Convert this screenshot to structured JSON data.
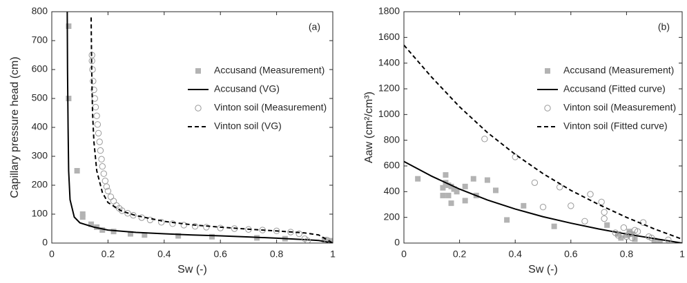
{
  "chart_data": [
    {
      "type": "scatter",
      "annotation": "(a)",
      "x_label": "Sw (-)",
      "y_label": "Capillary pressure head (cm)",
      "xlim": [
        0,
        1
      ],
      "xticks": [
        0,
        0.2,
        0.4,
        0.6,
        0.8,
        1
      ],
      "ylim": [
        0,
        800
      ],
      "yticks": [
        0,
        100,
        200,
        300,
        400,
        500,
        600,
        700,
        800
      ],
      "legend_loc": "right",
      "series": [
        {
          "name": "Accusand (Measurement)",
          "color": "#b3b3b3",
          "marker": "square",
          "x": [
            0.06,
            0.06,
            0.09,
            0.11,
            0.11,
            0.14,
            0.16,
            0.18,
            0.22,
            0.28,
            0.33,
            0.45,
            0.57,
            0.73,
            0.83,
            0.97,
            0.99,
            1.0
          ],
          "values": [
            750,
            500,
            250,
            100,
            90,
            65,
            55,
            45,
            40,
            32,
            28,
            25,
            22,
            18,
            15,
            12,
            8,
            3
          ]
        },
        {
          "name": "Accusand (VG)",
          "color": "#000000",
          "line": "solid",
          "x": [
            0.055,
            0.056,
            0.058,
            0.06,
            0.065,
            0.08,
            0.1,
            0.15,
            0.2,
            0.3,
            0.4,
            0.5,
            0.6,
            0.7,
            0.8,
            0.9,
            0.95,
            1.0
          ],
          "values": [
            800,
            600,
            400,
            250,
            150,
            90,
            70,
            55,
            45,
            37,
            32,
            28,
            25,
            21,
            17,
            12,
            9,
            0
          ]
        },
        {
          "name": "Vinton soil (Measurement)",
          "color": "#999999",
          "marker": "circle",
          "x": [
            0.143,
            0.143,
            0.145,
            0.147,
            0.15,
            0.153,
            0.156,
            0.16,
            0.163,
            0.166,
            0.17,
            0.173,
            0.177,
            0.18,
            0.185,
            0.19,
            0.195,
            0.2,
            0.21,
            0.22,
            0.23,
            0.24,
            0.25,
            0.27,
            0.29,
            0.32,
            0.35,
            0.39,
            0.43,
            0.47,
            0.51,
            0.55,
            0.6,
            0.65,
            0.7,
            0.75,
            0.8,
            0.85,
            0.88,
            0.9,
            0.91,
            0.98
          ],
          "values": [
            650,
            630,
            600,
            560,
            530,
            500,
            470,
            440,
            410,
            380,
            350,
            320,
            290,
            265,
            240,
            215,
            195,
            180,
            160,
            145,
            130,
            120,
            112,
            103,
            96,
            88,
            80,
            72,
            67,
            62,
            58,
            55,
            52,
            50,
            47,
            45,
            42,
            38,
            32,
            15,
            8,
            10
          ]
        },
        {
          "name": "Vinton soil (VG)",
          "color": "#000000",
          "line": "dashed",
          "x": [
            0.14,
            0.142,
            0.145,
            0.15,
            0.16,
            0.18,
            0.2,
            0.25,
            0.3,
            0.4,
            0.5,
            0.6,
            0.7,
            0.8,
            0.9,
            0.95,
            1.0
          ],
          "values": [
            780,
            600,
            450,
            350,
            250,
            175,
            140,
            110,
            95,
            75,
            63,
            55,
            48,
            42,
            35,
            28,
            0
          ]
        }
      ]
    },
    {
      "type": "scatter",
      "annotation": "(b)",
      "x_label": "Sw (-)",
      "y_label": "Aaw (cm²/cm³)",
      "xlim": [
        0,
        1
      ],
      "xticks": [
        0,
        0.2,
        0.4,
        0.6,
        0.8,
        1
      ],
      "ylim": [
        0,
        1800
      ],
      "yticks": [
        0,
        200,
        400,
        600,
        800,
        1000,
        1200,
        1400,
        1600,
        1800
      ],
      "legend_loc": "right",
      "series": [
        {
          "name": "Accusand (Measurement)",
          "color": "#b3b3b3",
          "marker": "square",
          "x": [
            0.05,
            0.14,
            0.14,
            0.15,
            0.15,
            0.16,
            0.16,
            0.17,
            0.17,
            0.18,
            0.19,
            0.22,
            0.22,
            0.25,
            0.26,
            0.3,
            0.33,
            0.37,
            0.43,
            0.54,
            0.73,
            0.77,
            0.78,
            0.8,
            0.81,
            0.82,
            0.83,
            0.9,
            0.92
          ],
          "values": [
            500,
            430,
            370,
            530,
            470,
            450,
            370,
            440,
            310,
            420,
            400,
            330,
            440,
            500,
            370,
            490,
            410,
            180,
            290,
            130,
            140,
            70,
            40,
            60,
            90,
            70,
            30,
            20,
            10
          ]
        },
        {
          "name": "Accusand (Fitted curve)",
          "color": "#000000",
          "line": "solid",
          "x": [
            0,
            0.1,
            0.2,
            0.3,
            0.4,
            0.5,
            0.6,
            0.7,
            0.8,
            0.9,
            1.0
          ],
          "values": [
            635,
            520,
            420,
            335,
            265,
            205,
            155,
            110,
            70,
            35,
            0
          ]
        },
        {
          "name": "Vinton soil (Measurement)",
          "color": "#999999",
          "marker": "circle",
          "x": [
            0.29,
            0.4,
            0.47,
            0.5,
            0.56,
            0.6,
            0.65,
            0.67,
            0.71,
            0.72,
            0.72,
            0.76,
            0.77,
            0.79,
            0.8,
            0.81,
            0.82,
            0.83,
            0.84,
            0.86,
            0.88,
            0.89,
            0.95
          ],
          "values": [
            810,
            670,
            470,
            280,
            435,
            290,
            170,
            380,
            320,
            240,
            190,
            80,
            60,
            120,
            50,
            70,
            40,
            100,
            90,
            160,
            50,
            40,
            25
          ]
        },
        {
          "name": "Vinton soil (Fitted curve)",
          "color": "#000000",
          "line": "dashed",
          "x": [
            0,
            0.1,
            0.2,
            0.3,
            0.4,
            0.5,
            0.6,
            0.7,
            0.8,
            0.9,
            1.0
          ],
          "values": [
            1540,
            1290,
            1060,
            860,
            690,
            540,
            410,
            300,
            200,
            110,
            30
          ]
        }
      ]
    }
  ]
}
